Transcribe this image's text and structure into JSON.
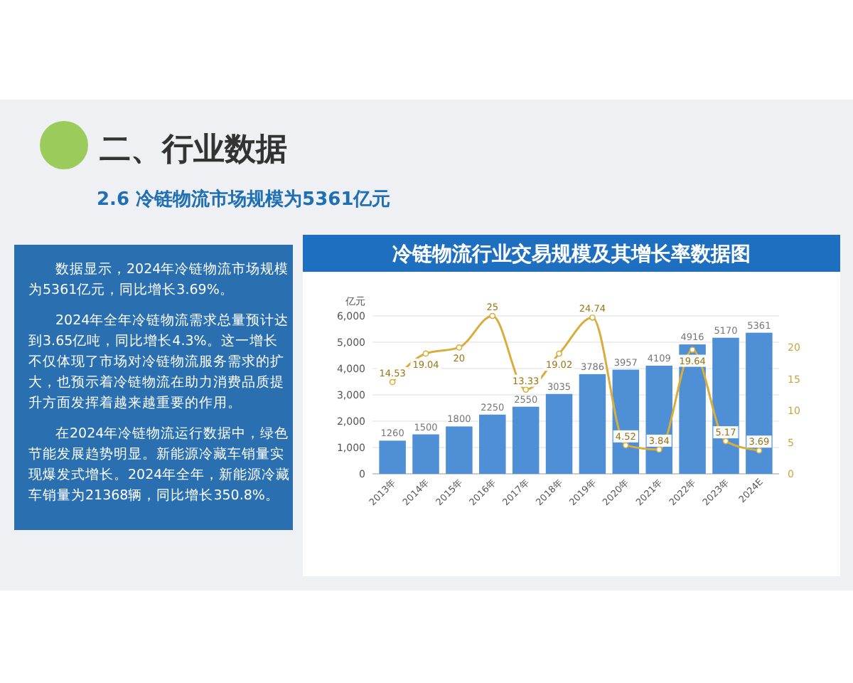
{
  "chart_data": {
    "type": "bar",
    "title": "冷链物流行业交易规模及其增长率数据图",
    "ylabel": "亿元",
    "annotations": [
      "二、行业数据",
      "2.6 冷链物流市场规模为5361亿元",
      "数据显示，2024年冷链物流市场规模为5361亿元，同比增长3.69%。",
      "2024年全年冷链物流需求总量预计达到3.65亿吨，同比增长4.3%。这一增长不仅体现了市场对冷链物流服务需求的扩大，也预示着冷链物流在助力消费品质提升方面发挥着越来越重要的作用。",
      "在2024年冷链物流运行数据中，绿色节能发展趋势明显。新能源冷藏车销量实现爆发式增长。2024年全年，新能源冷藏车销量为21368辆，同比增长350.8%。"
    ],
    "categories": [
      "2013年",
      "2014年",
      "2015年",
      "2016年",
      "2017年",
      "2018年",
      "2019年",
      "2020年",
      "2021年",
      "2022年",
      "2023年",
      "2024E"
    ],
    "series": [
      {
        "color": "#4f8fd6",
        "values": [
          1260,
          1500,
          1800,
          2250,
          2550,
          3035,
          3786,
          3957,
          4109,
          4916,
          5170,
          5361
        ]
      },
      {
        "type": "line",
        "axis": "y2",
        "color": "#d9ad3c",
        "values": [
          14.53,
          19.04,
          20,
          25,
          13.33,
          19.02,
          24.74,
          4.52,
          3.84,
          19.64,
          5.17,
          3.69
        ]
      }
    ],
    "ylim": [
      0,
      6000
    ],
    "yticks": [
      {
        "value": 0,
        "label": "0"
      },
      {
        "value": 1000,
        "label": "1,000"
      },
      {
        "value": 2000,
        "label": "2,000"
      },
      {
        "value": 3000,
        "label": "3,000"
      },
      {
        "value": 4000,
        "label": "4,000"
      },
      {
        "value": 5000,
        "label": "5,000"
      },
      {
        "value": 6000,
        "label": "6,000"
      }
    ],
    "y2lim": [
      0,
      25
    ],
    "y2ticks": [
      0,
      5,
      10,
      15,
      20
    ],
    "grid": "y",
    "marker": "circle",
    "line_style": "solid",
    "data_labels": true
  }
}
